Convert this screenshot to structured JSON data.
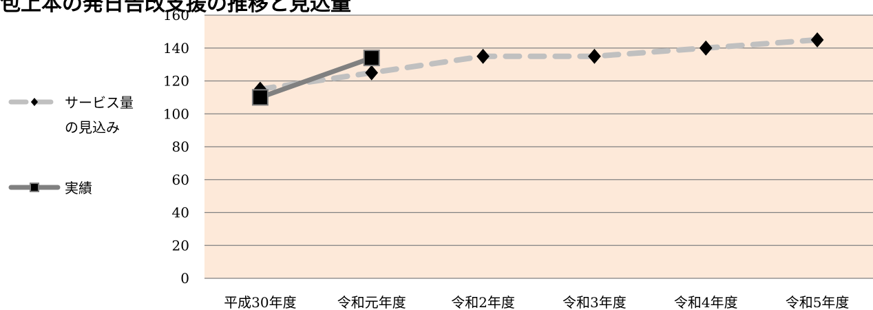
{
  "chart_data": {
    "type": "line",
    "title": "包上本の発日告改支援の推移と見込量",
    "categories": [
      "平成30年度",
      "令和元年度",
      "令和2年度",
      "令和3年度",
      "令和4年度",
      "令和5年度"
    ],
    "ylim": [
      0,
      160
    ],
    "yticks": [
      0,
      20,
      40,
      60,
      80,
      100,
      120,
      140,
      160
    ],
    "grid": true,
    "legend_position": "left",
    "background_color": "#fde9d9",
    "series": [
      {
        "name": "サービス量の見込み",
        "legend_lines": [
          "サービス量",
          "の見込み"
        ],
        "values": [
          115,
          125,
          135,
          135,
          140,
          145
        ],
        "color": "#c0c0c0",
        "marker": "diamond",
        "dash": true
      },
      {
        "name": "実績",
        "legend_lines": [
          "実績"
        ],
        "values": [
          110,
          134,
          null,
          null,
          null,
          null
        ],
        "color": "#808080",
        "marker": "square",
        "dash": false
      }
    ]
  }
}
